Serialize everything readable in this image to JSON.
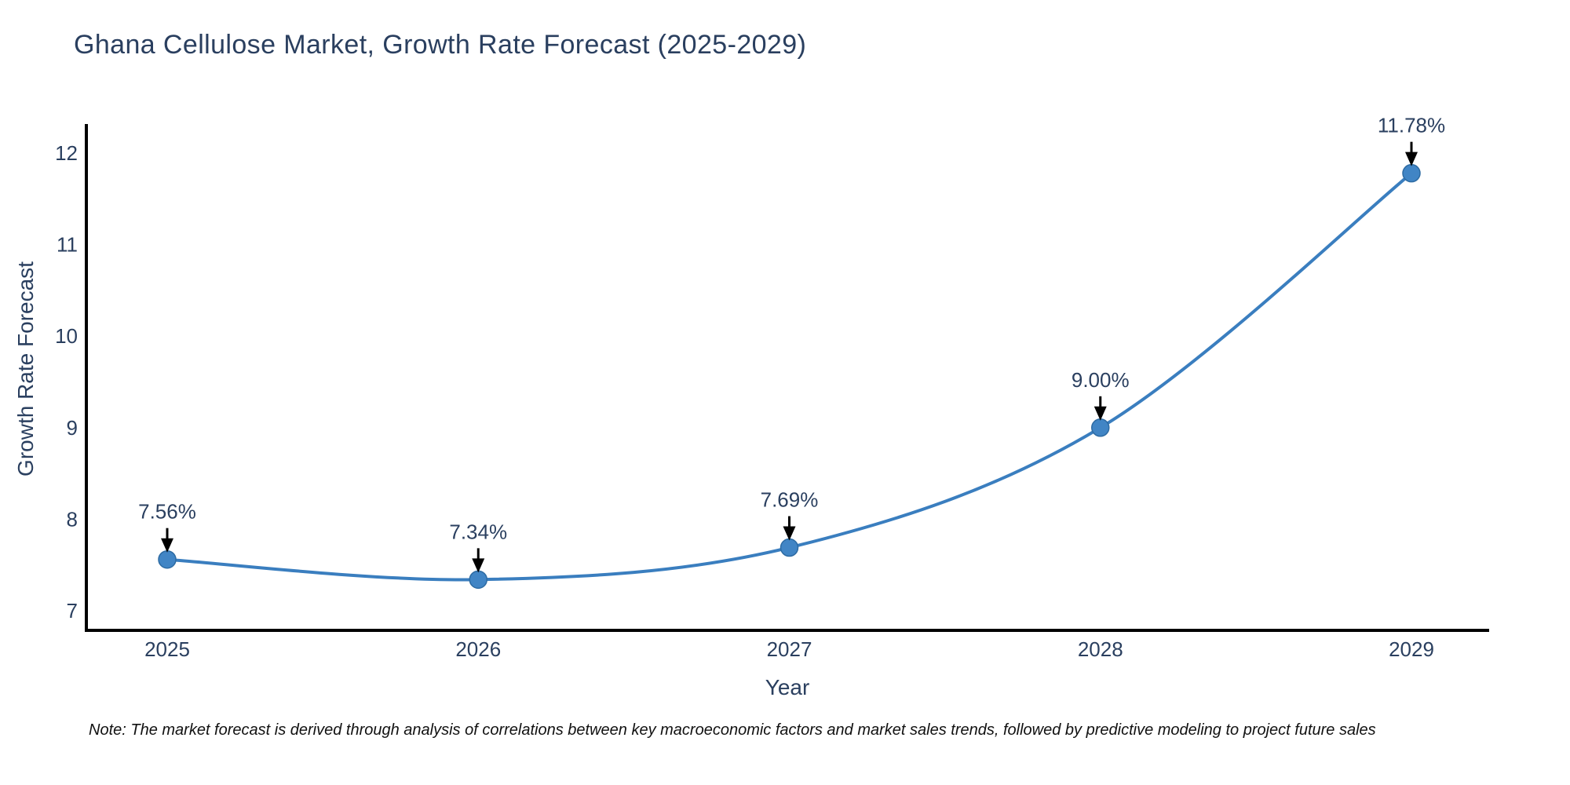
{
  "chart_data": {
    "type": "line",
    "title": "Ghana Cellulose Market, Growth Rate Forecast (2025-2029)",
    "xlabel": "Year",
    "ylabel": "Growth Rate Forecast",
    "categories": [
      "2025",
      "2026",
      "2027",
      "2028",
      "2029"
    ],
    "x": [
      2025,
      2026,
      2027,
      2028,
      2029
    ],
    "series": [
      {
        "name": "Growth Rate Forecast",
        "values": [
          7.56,
          7.34,
          7.69,
          9.0,
          11.78
        ]
      }
    ],
    "point_labels": [
      "7.56%",
      "7.34%",
      "7.69%",
      "9.00%",
      "11.78%"
    ],
    "y_ticks": [
      7,
      8,
      9,
      10,
      11,
      12
    ],
    "ylim": [
      6.8,
      12.3
    ],
    "grid": false,
    "legend_position": "none",
    "line_shape": "spline",
    "annotations_have_arrows": true,
    "colors": {
      "line": "#3a7ebf",
      "marker": "#4185c5",
      "marker_edge": "#2d6ba3",
      "axis": "#000000",
      "text": "#2a3f5f",
      "annotation_arrow": "#000000",
      "background": "#ffffff"
    }
  },
  "note": {
    "text": "Note: The market forecast is derived through analysis of correlations between key macroeconomic factors and market sales trends, followed by predictive modeling to project future sales"
  }
}
